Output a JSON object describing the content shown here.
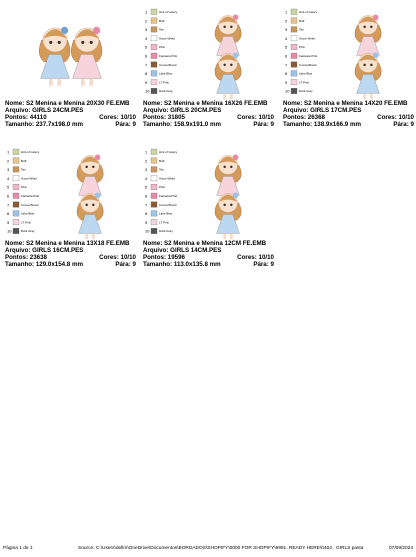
{
  "labels": {
    "name": "Nome:",
    "file": "Arquivo:",
    "stitches": "Pontos:",
    "colors": "Cores:",
    "size": "Tamanho:",
    "stops": "Pára:"
  },
  "palette": [
    {
      "num": "1",
      "name": "Hint of Celery",
      "swatch": "#c9d6a3"
    },
    {
      "num": "2",
      "name": "Buff",
      "swatch": "#e6c48c"
    },
    {
      "num": "3",
      "name": "Tan",
      "swatch": "#c8955a"
    },
    {
      "num": "4",
      "name": "Snow White",
      "swatch": "#ffffff"
    },
    {
      "num": "5",
      "name": "Pink",
      "swatch": "#f2b6c6"
    },
    {
      "num": "6",
      "name": "Fantasia Pink",
      "swatch": "#e88aa6"
    },
    {
      "num": "7",
      "name": "Cocoa Brown",
      "swatch": "#8a5a34"
    },
    {
      "num": "8",
      "name": "Lake Blue",
      "swatch": "#9cc3e6"
    },
    {
      "num": "9",
      "name": "LT Pink",
      "swatch": "#f7d3dc"
    },
    {
      "num": "10",
      "name": "Dark Gray",
      "swatch": "#555555"
    }
  ],
  "designs": [
    {
      "name": "S2 Menina e Menina 20X30 FE.EMB",
      "file": "GIRLS 24CM.PES",
      "stitches": "44110",
      "colors": "10/10",
      "size": "237.7x198.0 mm",
      "stops": "9",
      "show_palette": false
    },
    {
      "name": "S2 Menina e Menina 16X26 FE.EMB",
      "file": "GIRLS 20CM.PES",
      "stitches": "31805",
      "colors": "10/10",
      "size": "158.9x191.0 mm",
      "stops": "9",
      "show_palette": true
    },
    {
      "name": "S2 Menina e Menina 14X20 FE.EMB",
      "file": "GIRLS 17CM.PES",
      "stitches": "26368",
      "colors": "10/10",
      "size": "138.9x166.9 mm",
      "stops": "9",
      "show_palette": true
    },
    {
      "name": "S2 Menina e Menina 13X18 FE.EMB",
      "file": "GIRLS 16CM.PES",
      "stitches": "23638",
      "colors": "10/10",
      "size": "129.0x154.8 mm",
      "stops": "9",
      "show_palette": true
    },
    {
      "name": "S2 Menina e Menina 12CM FE.EMB",
      "file": "GIRLS 14CM.PES",
      "stitches": "19596",
      "colors": "10/10",
      "size": "113.0x135.8 mm",
      "stops": "9",
      "show_palette": true
    }
  ],
  "footer": {
    "page": "Página 1 de 1",
    "source": "Source: C:\\Users\\dellm\\OneDrive\\Documentos\\BORDADOS\\SHOPIFY\\0000 FOR SHOPIFY\\9991. READY HERE\\0404 . GIRLS pasta",
    "date": "07/08/2024"
  }
}
